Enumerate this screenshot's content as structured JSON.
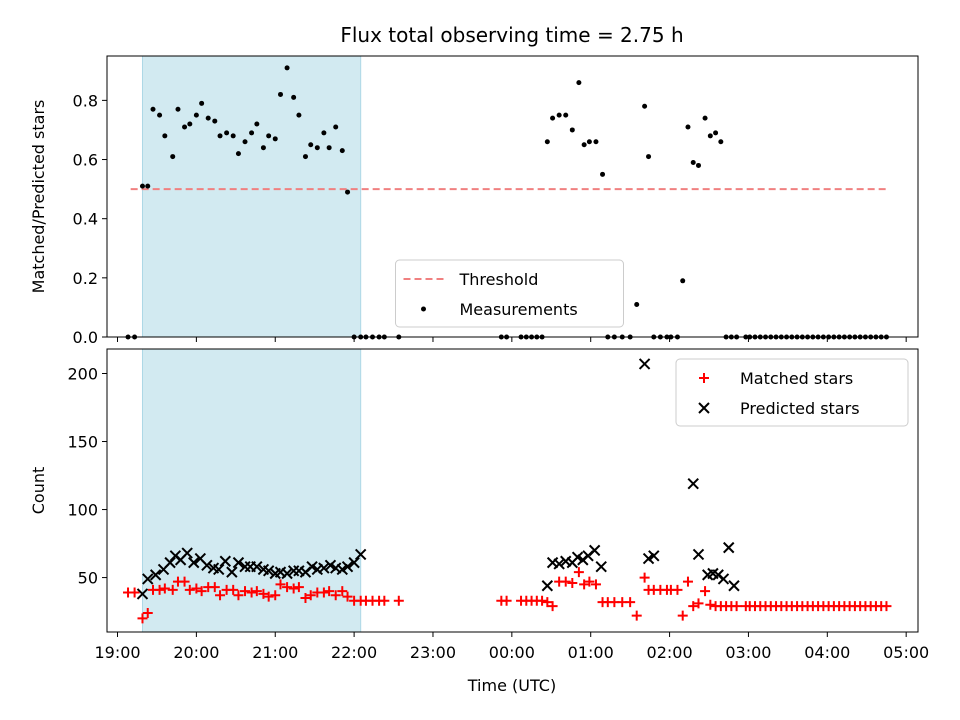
{
  "chart_data": {
    "type": "scatter",
    "title": "Flux total observing time = 2.75 h",
    "xlabel": "Time (UTC)",
    "x_ticks": [
      "19:00",
      "20:00",
      "21:00",
      "22:00",
      "23:00",
      "00:00",
      "01:00",
      "02:00",
      "03:00",
      "04:00",
      "05:00"
    ],
    "xlim": [
      "18:52",
      "05:09"
    ],
    "shaded_span": [
      "19:19",
      "22:05"
    ],
    "colors": {
      "shade": "#add8e6",
      "threshold": "#f08080",
      "measurements": "#000000",
      "matched": "#ff0000",
      "predicted": "#000000"
    },
    "panels": [
      {
        "ylabel": "Matched/Predicted stars",
        "ylim": [
          0,
          0.95
        ],
        "y_ticks": [
          "0.0",
          "0.2",
          "0.4",
          "0.6",
          "0.8"
        ],
        "legend": {
          "placement": "lower-center",
          "entries": [
            "Threshold",
            "Measurements"
          ]
        },
        "threshold": {
          "name": "Threshold",
          "y": 0.5,
          "x": [
            "19:10",
            "04:45"
          ]
        },
        "series": [
          {
            "name": "Measurements",
            "marker": "dot",
            "x": [
              "19:08",
              "19:13",
              "19:19",
              "19:23",
              "19:27",
              "19:32",
              "19:36",
              "19:42",
              "19:46",
              "19:51",
              "19:55",
              "20:00",
              "20:04",
              "20:09",
              "20:14",
              "20:18",
              "20:23",
              "20:28",
              "20:32",
              "20:37",
              "20:42",
              "20:46",
              "20:51",
              "20:55",
              "21:00",
              "21:04",
              "21:09",
              "21:14",
              "21:18",
              "21:23",
              "21:27",
              "21:32",
              "21:37",
              "21:41",
              "21:46",
              "21:51",
              "21:55",
              "22:00",
              "22:05",
              "22:09",
              "22:14",
              "22:19",
              "22:23",
              "22:34",
              "23:52",
              "23:56",
              "00:07",
              "00:11",
              "00:15",
              "00:19",
              "00:23",
              "00:27",
              "00:31",
              "00:36",
              "00:41",
              "00:46",
              "00:51",
              "00:55",
              "00:59",
              "01:04",
              "01:09",
              "01:13",
              "01:18",
              "01:24",
              "01:30",
              "01:35",
              "01:41",
              "01:44",
              "01:48",
              "01:53",
              "01:58",
              "02:01",
              "02:06",
              "02:10",
              "02:14",
              "02:18",
              "02:22",
              "02:27",
              "02:31",
              "02:35",
              "02:39",
              "02:43",
              "02:47",
              "02:51",
              "02:58",
              "03:01",
              "03:05",
              "03:09",
              "03:13",
              "03:17",
              "03:21",
              "03:25",
              "03:29",
              "03:33",
              "03:37",
              "03:41",
              "03:45",
              "03:49",
              "03:53",
              "03:57",
              "04:01",
              "04:05",
              "04:09",
              "04:13",
              "04:17",
              "04:21",
              "04:25",
              "04:29",
              "04:33",
              "04:37",
              "04:41",
              "04:45"
            ],
            "y": [
              0,
              0,
              0.51,
              0.51,
              0.77,
              0.75,
              0.68,
              0.61,
              0.77,
              0.71,
              0.72,
              0.75,
              0.79,
              0.74,
              0.73,
              0.68,
              0.69,
              0.68,
              0.62,
              0.66,
              0.69,
              0.72,
              0.64,
              0.68,
              0.67,
              0.82,
              0.91,
              0.81,
              0.75,
              0.61,
              0.65,
              0.64,
              0.69,
              0.64,
              0.71,
              0.63,
              0.49,
              0,
              0,
              0,
              0,
              0,
              0,
              0,
              0,
              0,
              0,
              0,
              0,
              0,
              0,
              0.66,
              0.74,
              0.75,
              0.75,
              0.7,
              0.86,
              0.65,
              0.66,
              0.66,
              0.55,
              0,
              0,
              0,
              0,
              0.11,
              0.78,
              0.61,
              0,
              0,
              0,
              0,
              0,
              0.19,
              0.71,
              0.59,
              0.58,
              0.74,
              0.68,
              0.69,
              0.66,
              0,
              0,
              0,
              0,
              0,
              0,
              0,
              0,
              0,
              0,
              0,
              0,
              0,
              0,
              0,
              0,
              0,
              0,
              0,
              0,
              0,
              0,
              0,
              0,
              0,
              0,
              0,
              0,
              0,
              0,
              0
            ]
          }
        ]
      },
      {
        "ylabel": "Count",
        "ylim": [
          10,
          218
        ],
        "y_ticks": [
          "50",
          "100",
          "150",
          "200"
        ],
        "legend": {
          "placement": "upper-right",
          "entries": [
            "Matched stars",
            "Predicted stars"
          ]
        },
        "series": [
          {
            "name": "Matched stars",
            "marker": "plus",
            "x": [
              "19:08",
              "19:13",
              "19:19",
              "19:23",
              "19:27",
              "19:32",
              "19:36",
              "19:42",
              "19:46",
              "19:51",
              "19:55",
              "20:00",
              "20:04",
              "20:09",
              "20:14",
              "20:18",
              "20:23",
              "20:28",
              "20:32",
              "20:37",
              "20:42",
              "20:46",
              "20:51",
              "20:55",
              "21:00",
              "21:04",
              "21:09",
              "21:14",
              "21:18",
              "21:23",
              "21:27",
              "21:32",
              "21:37",
              "21:41",
              "21:46",
              "21:51",
              "21:55",
              "22:00",
              "22:05",
              "22:09",
              "22:14",
              "22:19",
              "22:23",
              "22:34",
              "23:52",
              "23:56",
              "00:07",
              "00:11",
              "00:15",
              "00:19",
              "00:23",
              "00:27",
              "00:31",
              "00:36",
              "00:41",
              "00:46",
              "00:51",
              "00:55",
              "00:59",
              "01:04",
              "01:09",
              "01:13",
              "01:18",
              "01:24",
              "01:30",
              "01:35",
              "01:41",
              "01:44",
              "01:48",
              "01:53",
              "01:58",
              "02:01",
              "02:06",
              "02:10",
              "02:14",
              "02:18",
              "02:22",
              "02:27",
              "02:31",
              "02:35",
              "02:39",
              "02:43",
              "02:47",
              "02:51",
              "02:58",
              "03:01",
              "03:05",
              "03:09",
              "03:13",
              "03:17",
              "03:21",
              "03:25",
              "03:29",
              "03:33",
              "03:37",
              "03:41",
              "03:45",
              "03:49",
              "03:53",
              "03:57",
              "04:01",
              "04:05",
              "04:09",
              "04:13",
              "04:17",
              "04:21",
              "04:25",
              "04:29",
              "04:33",
              "04:37",
              "04:41",
              "04:45"
            ],
            "y": [
              39,
              39,
              20,
              24,
              41,
              41,
              42,
              41,
              47,
              47,
              41,
              42,
              40,
              43,
              43,
              37,
              41,
              41,
              37,
              40,
              39,
              40,
              38,
              36,
              37,
              45,
              43,
              42,
              43,
              35,
              37,
              39,
              39,
              40,
              37,
              40,
              36,
              33,
              33,
              33,
              33,
              33,
              33,
              33,
              33,
              33,
              33,
              33,
              33,
              33,
              33,
              32,
              29,
              47,
              47,
              46,
              54,
              45,
              47,
              45,
              32,
              32,
              32,
              32,
              32,
              22,
              50,
              41,
              41,
              41,
              41,
              41,
              41,
              22,
              47,
              29,
              31,
              40,
              30,
              29,
              29,
              29,
              29,
              29,
              29,
              29,
              29,
              29,
              29,
              29,
              29,
              29,
              29,
              29,
              29,
              29,
              29,
              29,
              29,
              29,
              29,
              29,
              29,
              29,
              29,
              29,
              29,
              29,
              29,
              29,
              29,
              29
            ]
          },
          {
            "name": "Predicted stars",
            "marker": "x",
            "x": [
              "19:19",
              "19:23",
              "19:29",
              "19:35",
              "19:40",
              "19:44",
              "19:48",
              "19:53",
              "19:58",
              "20:03",
              "20:08",
              "20:13",
              "20:17",
              "20:22",
              "20:27",
              "20:32",
              "20:37",
              "20:41",
              "20:46",
              "20:51",
              "20:55",
              "21:00",
              "21:04",
              "21:09",
              "21:14",
              "21:18",
              "21:23",
              "21:28",
              "21:32",
              "21:37",
              "21:42",
              "21:46",
              "21:51",
              "21:55",
              "22:00",
              "22:05",
              "00:27",
              "00:31",
              "00:36",
              "00:41",
              "00:46",
              "00:50",
              "00:54",
              "00:58",
              "01:03",
              "01:08",
              "01:41",
              "01:44",
              "01:48",
              "02:18",
              "02:22",
              "02:29",
              "02:33",
              "02:37",
              "02:41",
              "02:45",
              "02:49"
            ],
            "y": [
              38,
              49,
              52,
              56,
              61,
              66,
              63,
              68,
              61,
              64,
              59,
              57,
              56,
              62,
              54,
              61,
              58,
              58,
              58,
              56,
              55,
              53,
              54,
              53,
              55,
              55,
              54,
              58,
              56,
              57,
              59,
              57,
              56,
              58,
              61,
              67,
              44,
              61,
              60,
              62,
              61,
              65,
              63,
              66,
              70,
              58,
              207,
              64,
              66,
              119,
              67,
              52,
              53,
              52,
              49,
              72,
              44
            ]
          }
        ]
      }
    ]
  }
}
